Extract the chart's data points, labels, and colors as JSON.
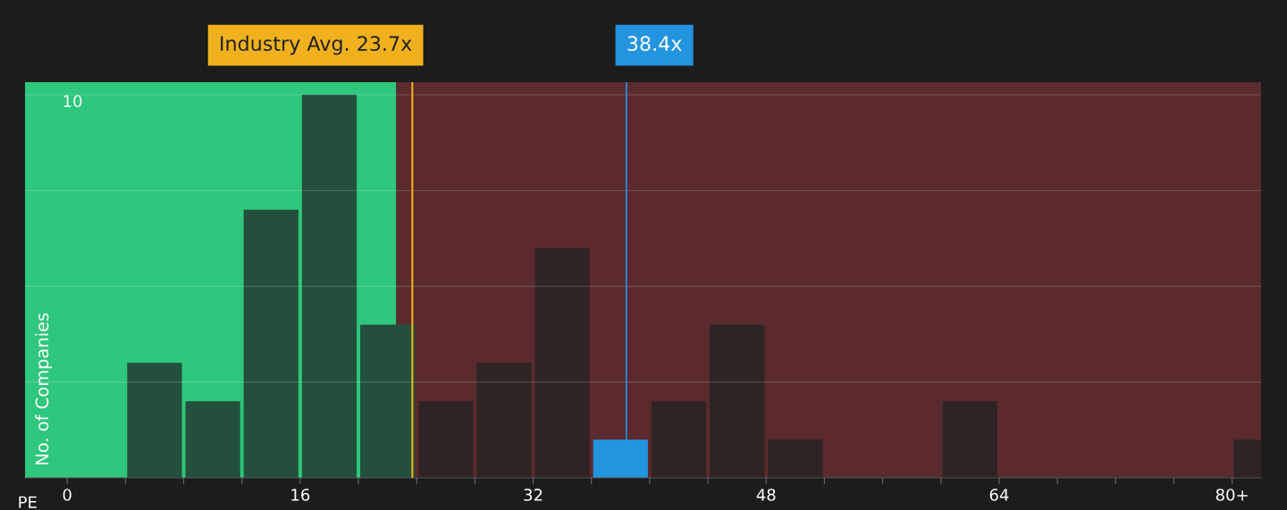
{
  "chart_data": {
    "type": "bar",
    "xlabel": "PE",
    "ylabel": "No. of Companies",
    "x": [
      2,
      6,
      10,
      14,
      18,
      22,
      26,
      30,
      34,
      38,
      42,
      46,
      50,
      54,
      58,
      62,
      66,
      70,
      74,
      78,
      82
    ],
    "values": [
      0,
      3,
      2,
      7,
      10,
      4,
      2,
      3,
      6,
      1,
      2,
      4,
      1,
      0,
      0,
      2,
      0,
      0,
      0,
      0,
      1
    ],
    "colors": [
      "#22503c",
      "#22503c",
      "#22503c",
      "#22503c",
      "#22503c",
      "#22503c",
      "#2e2424",
      "#2e2424",
      "#2e2424",
      "#2394e0",
      "#2e2424",
      "#2e2424",
      "#2e2424",
      "#2e2424",
      "#2e2424",
      "#2e2424",
      "#2e2424",
      "#2e2424",
      "#2e2424",
      "#2e2424",
      "#2e2424"
    ],
    "xlim": [
      -2.9,
      82
    ],
    "ylim": [
      0,
      10.33
    ],
    "xticks": [
      {
        "value": 0,
        "label": "0"
      },
      {
        "value": 4,
        "label": null
      },
      {
        "value": 8,
        "label": null
      },
      {
        "value": 12,
        "label": null
      },
      {
        "value": 16,
        "label": "16"
      },
      {
        "value": 20,
        "label": null
      },
      {
        "value": 24,
        "label": null
      },
      {
        "value": 28,
        "label": null
      },
      {
        "value": 32,
        "label": "32"
      },
      {
        "value": 36,
        "label": null
      },
      {
        "value": 40,
        "label": null
      },
      {
        "value": 44,
        "label": null
      },
      {
        "value": 48,
        "label": "48"
      },
      {
        "value": 52,
        "label": null
      },
      {
        "value": 56,
        "label": null
      },
      {
        "value": 60,
        "label": null
      },
      {
        "value": 64,
        "label": "64"
      },
      {
        "value": 68,
        "label": null
      },
      {
        "value": 72,
        "label": null
      },
      {
        "value": 76,
        "label": null
      },
      {
        "value": 80,
        "label": "80+"
      }
    ],
    "yticks": [
      {
        "value": 2.5,
        "label": null
      },
      {
        "value": 5,
        "label": null
      },
      {
        "value": 7.5,
        "label": null
      },
      {
        "value": 10,
        "label": "10"
      }
    ],
    "grid": "y",
    "legend": false,
    "bands": [
      {
        "axis": "x",
        "from": -2.9,
        "to": 22.6,
        "color": "#2ec77d"
      },
      {
        "axis": "x",
        "from": 22.6,
        "to": 82,
        "color": "#5a2a2e"
      }
    ],
    "ref_lines": [
      {
        "axis": "x",
        "value": 23.7,
        "label": "Industry Avg. 23.7x",
        "color": "#f0b11d"
      },
      {
        "axis": "x",
        "value": 38.4,
        "label": "38.4x",
        "color": "#2394e0"
      }
    ]
  }
}
